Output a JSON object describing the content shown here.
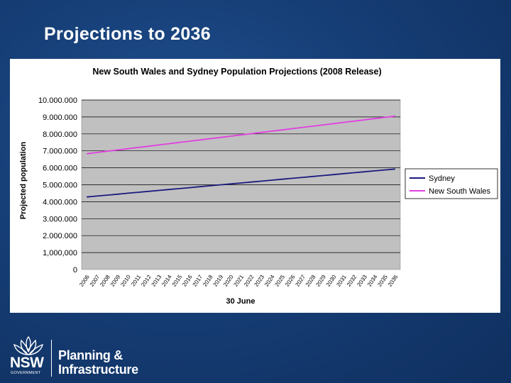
{
  "slide": {
    "title": "Projections to 2036"
  },
  "logo": {
    "nsw": "NSW",
    "government": "GOVERNMENT",
    "line1": "Planning &",
    "line2": "Infrastructure"
  },
  "colors": {
    "background": "#163e76",
    "plot_area": "#c0c0c0",
    "sydney": "#1a1a80",
    "nsw": "#e040e0"
  },
  "chart_data": {
    "type": "line",
    "title": "New South Wales and Sydney Population Projections (2008 Release)",
    "xlabel": "30 June",
    "ylabel": "Projected population",
    "ylim": [
      0,
      10000000
    ],
    "grid": true,
    "legend_position": "right",
    "y_ticks": [
      "0",
      "1,000,000",
      "2.000.000",
      "3.000.000",
      "4.000.000",
      "5.000.000",
      "6.000.000",
      "7.000.000",
      "8.000.000",
      "9.000.000",
      "10.000.000"
    ],
    "x": [
      "2006",
      "2007",
      "2008",
      "2009",
      "2010",
      "2011",
      "2012",
      "2013",
      "2014",
      "2015",
      "2016",
      "2017",
      "2018",
      "2019",
      "2020",
      "2021",
      "2022",
      "2023",
      "2024",
      "2025",
      "2026",
      "2027",
      "2028",
      "2029",
      "2030",
      "2031",
      "2032",
      "2033",
      "2034",
      "2035",
      "2036"
    ],
    "series": [
      {
        "name": "Sydney",
        "values": [
          4280000,
          4335000,
          4390000,
          4445000,
          4500000,
          4555000,
          4610000,
          4665000,
          4720000,
          4775000,
          4830000,
          4885000,
          4940000,
          4995000,
          5050000,
          5105000,
          5160000,
          5215000,
          5270000,
          5325000,
          5380000,
          5435000,
          5490000,
          5545000,
          5600000,
          5655000,
          5710000,
          5765000,
          5820000,
          5875000,
          5930000
        ]
      },
      {
        "name": "New South Wales",
        "values": [
          6830000,
          6904000,
          6978000,
          7052000,
          7126000,
          7200000,
          7274000,
          7348000,
          7422000,
          7496000,
          7570000,
          7644000,
          7718000,
          7792000,
          7866000,
          7940000,
          8014000,
          8088000,
          8162000,
          8236000,
          8310000,
          8384000,
          8458000,
          8532000,
          8606000,
          8680000,
          8754000,
          8828000,
          8902000,
          8976000,
          9050000
        ]
      }
    ]
  }
}
